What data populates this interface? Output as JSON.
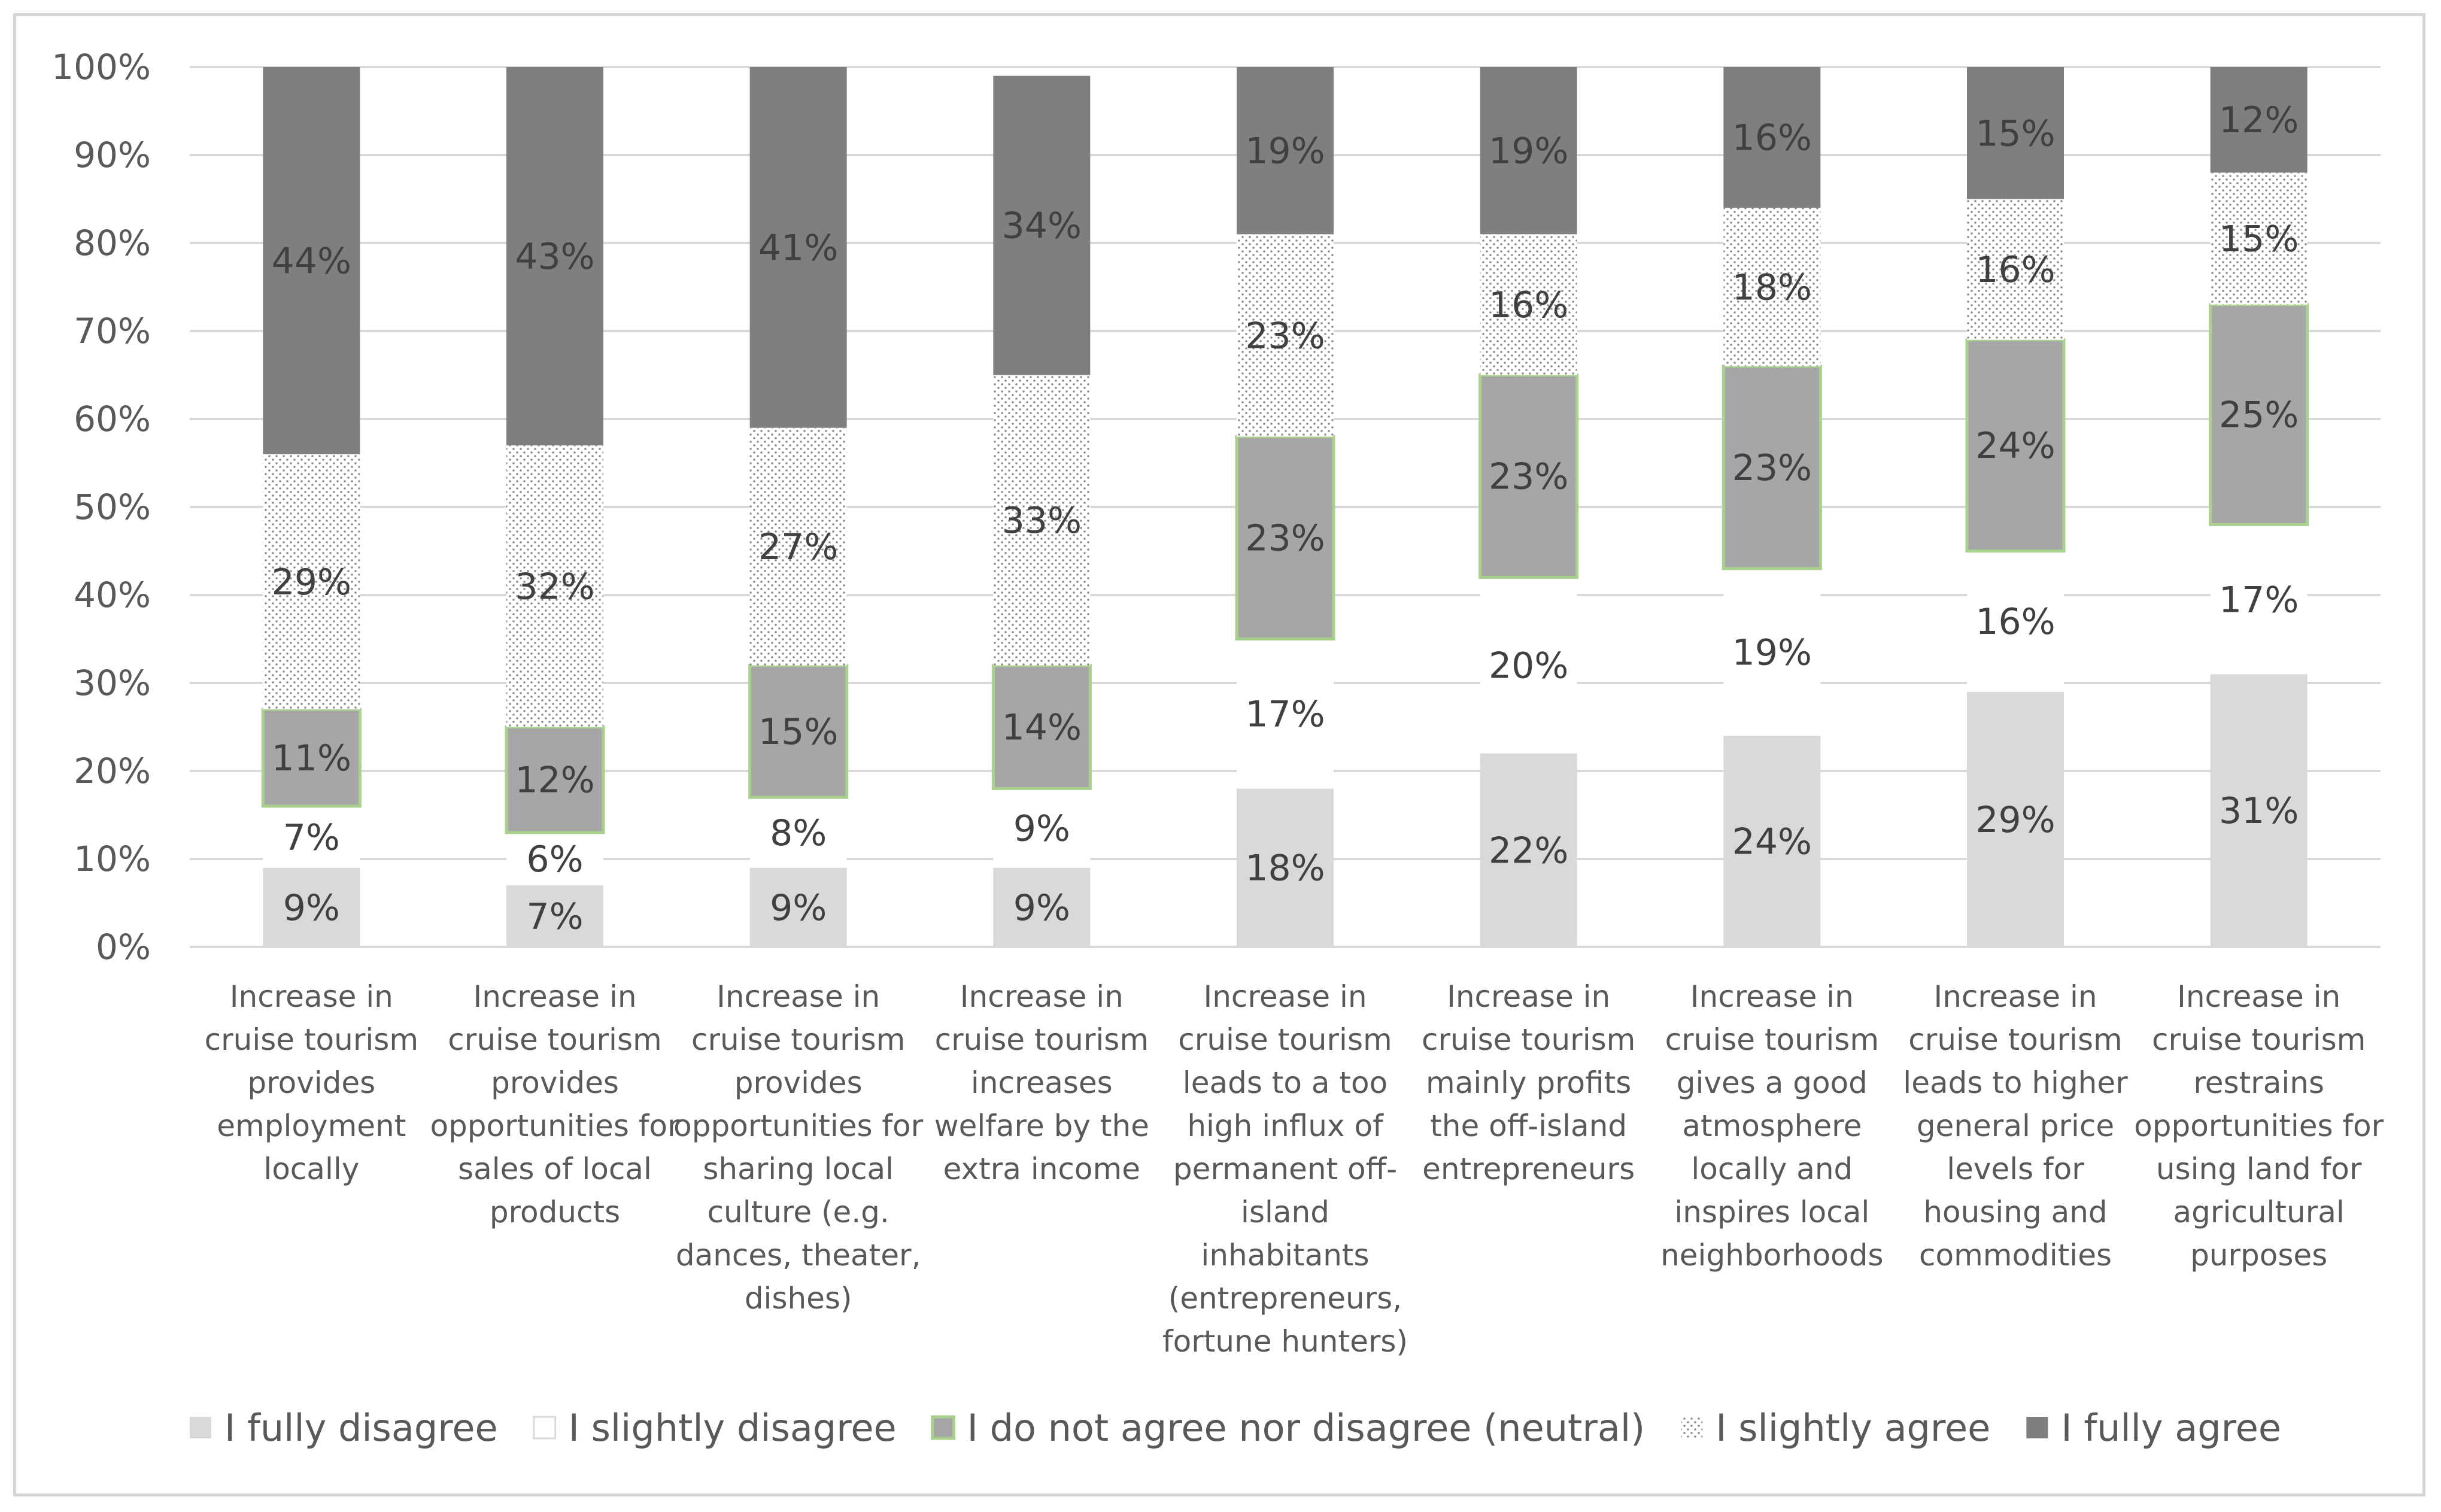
{
  "chart_data": {
    "type": "stacked-bar-100",
    "title": "",
    "xlabel": "",
    "ylabel": "",
    "ylim": [
      0,
      100
    ],
    "y_ticks": [
      "0%",
      "10%",
      "20%",
      "30%",
      "40%",
      "50%",
      "60%",
      "70%",
      "80%",
      "90%",
      "100%"
    ],
    "grid": true,
    "legend_position": "bottom",
    "categories": [
      [
        "Increase in",
        "cruise tourism",
        "provides",
        "employment",
        "locally"
      ],
      [
        "Increase in",
        "cruise tourism",
        "provides",
        "opportunities for",
        "sales of local",
        "products"
      ],
      [
        "Increase in",
        "cruise tourism",
        "provides",
        "opportunities for",
        "sharing local",
        "culture (e.g.",
        "dances, theater,",
        "dishes)"
      ],
      [
        "Increase in",
        "cruise tourism",
        "increases",
        "welfare by the",
        "extra income"
      ],
      [
        "Increase in",
        "cruise tourism",
        "leads to a too",
        "high influx of",
        "permanent off-",
        "island",
        "inhabitants",
        "(entrepreneurs,",
        "fortune hunters)"
      ],
      [
        "Increase in",
        "cruise tourism",
        "mainly profits",
        "the off-island",
        "entrepreneurs"
      ],
      [
        "Increase in",
        "cruise tourism",
        "gives a good",
        "atmosphere",
        "locally and",
        "inspires local",
        "neighborhoods"
      ],
      [
        "Increase in",
        "cruise tourism",
        "leads to higher",
        "general price",
        "levels for",
        "housing and",
        "commodities"
      ],
      [
        "Increase in",
        "cruise tourism",
        "restrains",
        "opportunities for",
        "using land for",
        "agricultural",
        "purposes"
      ]
    ],
    "series": [
      {
        "name": "I fully disagree",
        "values": [
          9,
          7,
          9,
          9,
          18,
          22,
          24,
          29,
          31
        ],
        "labels": [
          "9%",
          "7%",
          "9%",
          "9%",
          "18%",
          "22%",
          "24%",
          "29%",
          "31%"
        ],
        "color": "#d9d9d9"
      },
      {
        "name": "I slightly disagree",
        "values": [
          7,
          6,
          8,
          9,
          17,
          20,
          19,
          16,
          17
        ],
        "labels": [
          "7%",
          "6%",
          "8%",
          "9%",
          "17%",
          "20%",
          "19%",
          "16%",
          "17%"
        ],
        "color": "#ffffff"
      },
      {
        "name": "I do not agree nor disagree (neutral)",
        "values": [
          11,
          12,
          15,
          14,
          23,
          23,
          23,
          24,
          25
        ],
        "labels": [
          "11%",
          "12%",
          "15%",
          "14%",
          "23%",
          "23%",
          "23%",
          "24%",
          "25%"
        ],
        "color": "#a6a6a6",
        "border_color": "#a9d18e"
      },
      {
        "name": "I slightly agree",
        "values": [
          29,
          32,
          27,
          33,
          23,
          16,
          18,
          16,
          15
        ],
        "labels": [
          "29%",
          "32%",
          "27%",
          "33%",
          "23%",
          "16%",
          "18%",
          "16%",
          "15%"
        ],
        "color": "dotted"
      },
      {
        "name": "I fully agree",
        "values": [
          44,
          43,
          41,
          34,
          19,
          19,
          16,
          15,
          12
        ],
        "labels": [
          "44%",
          "43%",
          "41%",
          "34%",
          "19%",
          "19%",
          "16%",
          "15%",
          "12%"
        ],
        "color": "#7f7f7f"
      }
    ]
  }
}
